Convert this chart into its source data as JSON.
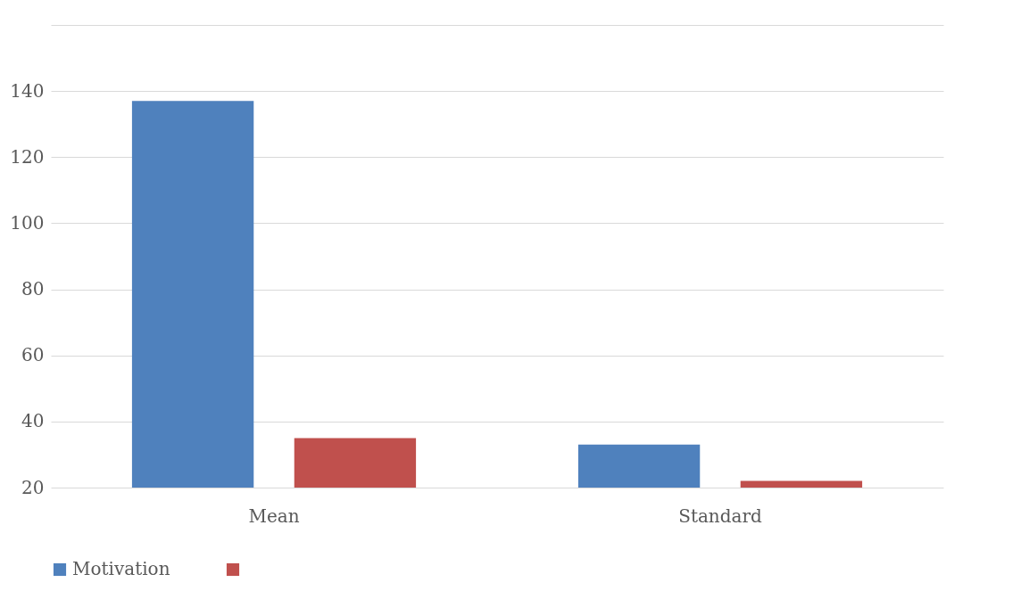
{
  "chart_data": {
    "type": "bar",
    "categories": [
      "Mean",
      "Standard"
    ],
    "series": [
      {
        "name": "Motivation",
        "color": "#4f81bd",
        "values": [
          137,
          33
        ]
      },
      {
        "color": "#c0504d",
        "values": [
          35,
          22
        ]
      }
    ],
    "ylim": [
      20,
      160
    ],
    "yticks": [
      20,
      40,
      60,
      80,
      100,
      120,
      140,
      {
        "value": 160,
        "label": null
      }
    ],
    "grid": "y",
    "legend": "bottom"
  }
}
